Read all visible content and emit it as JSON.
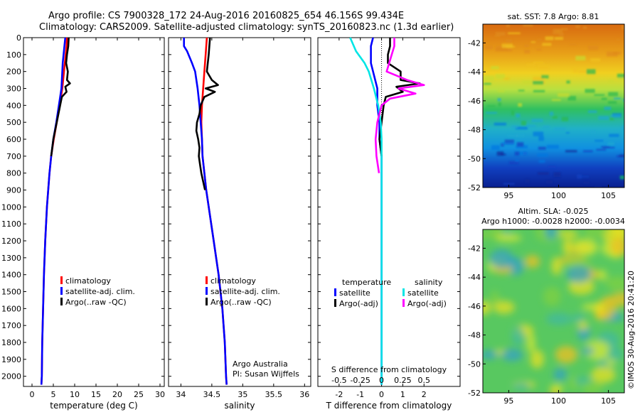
{
  "header": {
    "line1": "Argo profile: CS 7900328_172 24-Aug-2016 20160825_654 46.156S 99.434E",
    "line2": "Climatology: CARS2009. Satellite-adjusted climatology: synTS_20160823.nc (1.3d earlier)"
  },
  "footer_stamp": "©IMOS 30-Aug-2016 20:41:20",
  "colors": {
    "climatology": "#ff0000",
    "satellite": "#0000ff",
    "argo": "#000000",
    "sal_satellite": "#00e5e5",
    "sal_argo": "#ff00ff"
  },
  "chart_data": [
    {
      "type": "line",
      "panel": "temperature",
      "xlabel": "temperature (deg C)",
      "ylabel": "",
      "xlim": [
        -2,
        31
      ],
      "ylim": [
        2060,
        0
      ],
      "xticks": [
        0,
        5,
        10,
        15,
        20,
        25,
        30
      ],
      "yticks": [
        0,
        100,
        200,
        300,
        400,
        500,
        600,
        700,
        800,
        900,
        1000,
        1100,
        1200,
        1300,
        1400,
        1500,
        1600,
        1700,
        1800,
        1900,
        2000
      ],
      "legend": [
        "climatology",
        "satellite-adj. clim.",
        "Argo(..raw -QC)"
      ],
      "series": [
        {
          "name": "climatology",
          "color": "#ff0000",
          "depth": [
            0,
            50,
            100,
            150,
            200,
            250,
            300,
            350,
            400,
            500,
            600,
            700,
            800,
            900,
            1000,
            1200,
            1400,
            1600,
            1800,
            2000,
            2050
          ],
          "values": [
            8.2,
            8.1,
            7.9,
            7.7,
            7.5,
            7.3,
            7.1,
            6.8,
            6.5,
            5.8,
            5.1,
            4.5,
            4.1,
            3.8,
            3.5,
            3.1,
            2.8,
            2.6,
            2.4,
            2.3,
            2.2
          ]
        },
        {
          "name": "satellite-adj. clim.",
          "color": "#0000ff",
          "depth": [
            0,
            50,
            100,
            150,
            200,
            250,
            300,
            350,
            400,
            500,
            600,
            700,
            800,
            900,
            1000,
            1200,
            1400,
            1600,
            1800,
            2000,
            2050
          ],
          "values": [
            7.8,
            7.6,
            7.4,
            7.2,
            7.1,
            7.0,
            6.9,
            6.6,
            6.3,
            5.7,
            5.0,
            4.5,
            4.1,
            3.8,
            3.5,
            3.1,
            2.8,
            2.6,
            2.4,
            2.3,
            2.2
          ]
        },
        {
          "name": "Argo(..raw -QC)",
          "color": "#000000",
          "depth": [
            0,
            50,
            100,
            150,
            200,
            250,
            270,
            290,
            320,
            350,
            400,
            500,
            600,
            700
          ],
          "values": [
            8.6,
            8.5,
            8.2,
            8.0,
            8.4,
            8.2,
            8.9,
            7.8,
            8.1,
            7.0,
            6.6,
            5.8,
            5.0,
            4.5
          ]
        }
      ]
    },
    {
      "type": "line",
      "panel": "salinity",
      "xlabel": "salinity",
      "ylabel": "",
      "xlim": [
        33.8,
        36.1
      ],
      "ylim": [
        2060,
        0
      ],
      "xticks": [
        34,
        34.5,
        35,
        35.5,
        36
      ],
      "legend": [
        "climatology",
        "satellite-adj. clim.",
        "Argo(..raw -QC)"
      ],
      "annotation": [
        "Argo Australia",
        "PI: Susan Wijffels"
      ],
      "series": [
        {
          "name": "climatology",
          "color": "#ff0000",
          "depth": [
            0,
            100,
            200,
            300,
            400,
            500,
            600,
            700,
            800,
            900,
            1000,
            1200,
            1400,
            1600,
            1800,
            2000,
            2050
          ],
          "values": [
            34.42,
            34.4,
            34.38,
            34.36,
            34.34,
            34.33,
            34.34,
            34.35,
            34.38,
            34.41,
            34.45,
            34.53,
            34.61,
            34.67,
            34.71,
            34.73,
            34.74
          ]
        },
        {
          "name": "satellite-adj. clim.",
          "color": "#0000ff",
          "depth": [
            0,
            50,
            80,
            150,
            200,
            300,
            400,
            500,
            600,
            700,
            800,
            900,
            1000,
            1200,
            1400,
            1600,
            1800,
            2000,
            2050
          ],
          "values": [
            34.05,
            34.05,
            34.1,
            34.18,
            34.23,
            34.27,
            34.3,
            34.32,
            34.34,
            34.35,
            34.38,
            34.41,
            34.45,
            34.53,
            34.61,
            34.67,
            34.71,
            34.73,
            34.74
          ]
        },
        {
          "name": "Argo(..raw -QC)",
          "color": "#000000",
          "depth": [
            0,
            100,
            200,
            250,
            280,
            300,
            320,
            350,
            400,
            450,
            500,
            550,
            600,
            650,
            700,
            750,
            800,
            850,
            900
          ],
          "values": [
            34.47,
            34.45,
            34.42,
            34.5,
            34.6,
            34.4,
            34.55,
            34.38,
            34.32,
            34.3,
            34.26,
            34.25,
            34.28,
            34.3,
            34.29,
            34.31,
            34.33,
            34.36,
            34.39
          ]
        }
      ]
    },
    {
      "type": "line",
      "panel": "difference",
      "xlabel": "T difference from climatology",
      "xlabel_top": "S difference from climatology",
      "xlim": [
        -3,
        3.7
      ],
      "ylim": [
        2060,
        0
      ],
      "xticks": [
        -2,
        -1,
        0,
        1,
        2
      ],
      "xticks_top": [
        -0.5,
        -0.25,
        0,
        0.25,
        0.5
      ],
      "legend_groups": [
        {
          "title": "temperature",
          "items": [
            "satellite",
            "Argo(-adj)"
          ]
        },
        {
          "title": "salinity",
          "items": [
            "satellite",
            "Argo(-adj)"
          ]
        }
      ],
      "series": [
        {
          "name": "temperature satellite",
          "color": "#0000ff",
          "depth": [
            0,
            50,
            100,
            150,
            200,
            300,
            400,
            500,
            600,
            700,
            800,
            1000,
            1200,
            1500,
            2000,
            2050
          ],
          "values": [
            -0.4,
            -0.5,
            -0.5,
            -0.5,
            -0.4,
            -0.2,
            -0.2,
            -0.1,
            -0.1,
            0.0,
            0.0,
            0.0,
            0.0,
            0.0,
            0.0,
            0.0
          ]
        },
        {
          "name": "temperature Argo(-adj)",
          "color": "#000000",
          "depth": [
            0,
            50,
            100,
            150,
            200,
            250,
            270,
            290,
            320,
            350,
            400,
            500,
            600,
            700
          ],
          "values": [
            0.4,
            0.4,
            0.3,
            0.3,
            0.9,
            0.9,
            1.8,
            0.7,
            1.0,
            0.2,
            0.1,
            0.0,
            -0.1,
            0.0
          ]
        },
        {
          "name": "salinity satellite",
          "color": "#00e5e5",
          "depth": [
            0,
            80,
            150,
            200,
            300,
            400,
            500,
            600,
            800,
            1000,
            1200,
            1500,
            2000,
            2050
          ],
          "values": [
            -0.37,
            -0.3,
            -0.2,
            -0.15,
            -0.09,
            -0.04,
            -0.01,
            0.0,
            0.0,
            0.0,
            0.0,
            0.0,
            0.0,
            0.0
          ]
        },
        {
          "name": "salinity Argo(-adj)",
          "color": "#ff00ff",
          "depth": [
            0,
            50,
            100,
            200,
            250,
            280,
            300,
            330,
            360,
            400,
            500,
            600,
            700,
            800
          ],
          "values": [
            0.15,
            0.15,
            0.12,
            0.06,
            0.3,
            0.5,
            0.2,
            0.4,
            0.1,
            0.0,
            -0.05,
            -0.07,
            -0.06,
            -0.03
          ]
        }
      ]
    },
    {
      "type": "heatmap",
      "panel": "satellite SST map",
      "title": "sat. SST: 7.8  Argo: 8.81",
      "xlim": [
        92.4,
        106.6
      ],
      "ylim": [
        -52,
        -40.7
      ],
      "xticks": [
        95,
        100,
        105
      ],
      "yticks": [
        -42,
        -44,
        -46,
        -48,
        -50,
        -52
      ]
    },
    {
      "type": "heatmap",
      "panel": "altimeter SLA map",
      "title": "Altim. SLA: -0.025",
      "subtitle": "Argo h1000: -0.0028 h2000: -0.0034",
      "xlim": [
        92.4,
        106.6
      ],
      "ylim": [
        -52,
        -40.7
      ],
      "xticks": [
        95,
        100,
        105
      ],
      "yticks": [
        -42,
        -44,
        -46,
        -48,
        -50,
        -52
      ]
    }
  ]
}
